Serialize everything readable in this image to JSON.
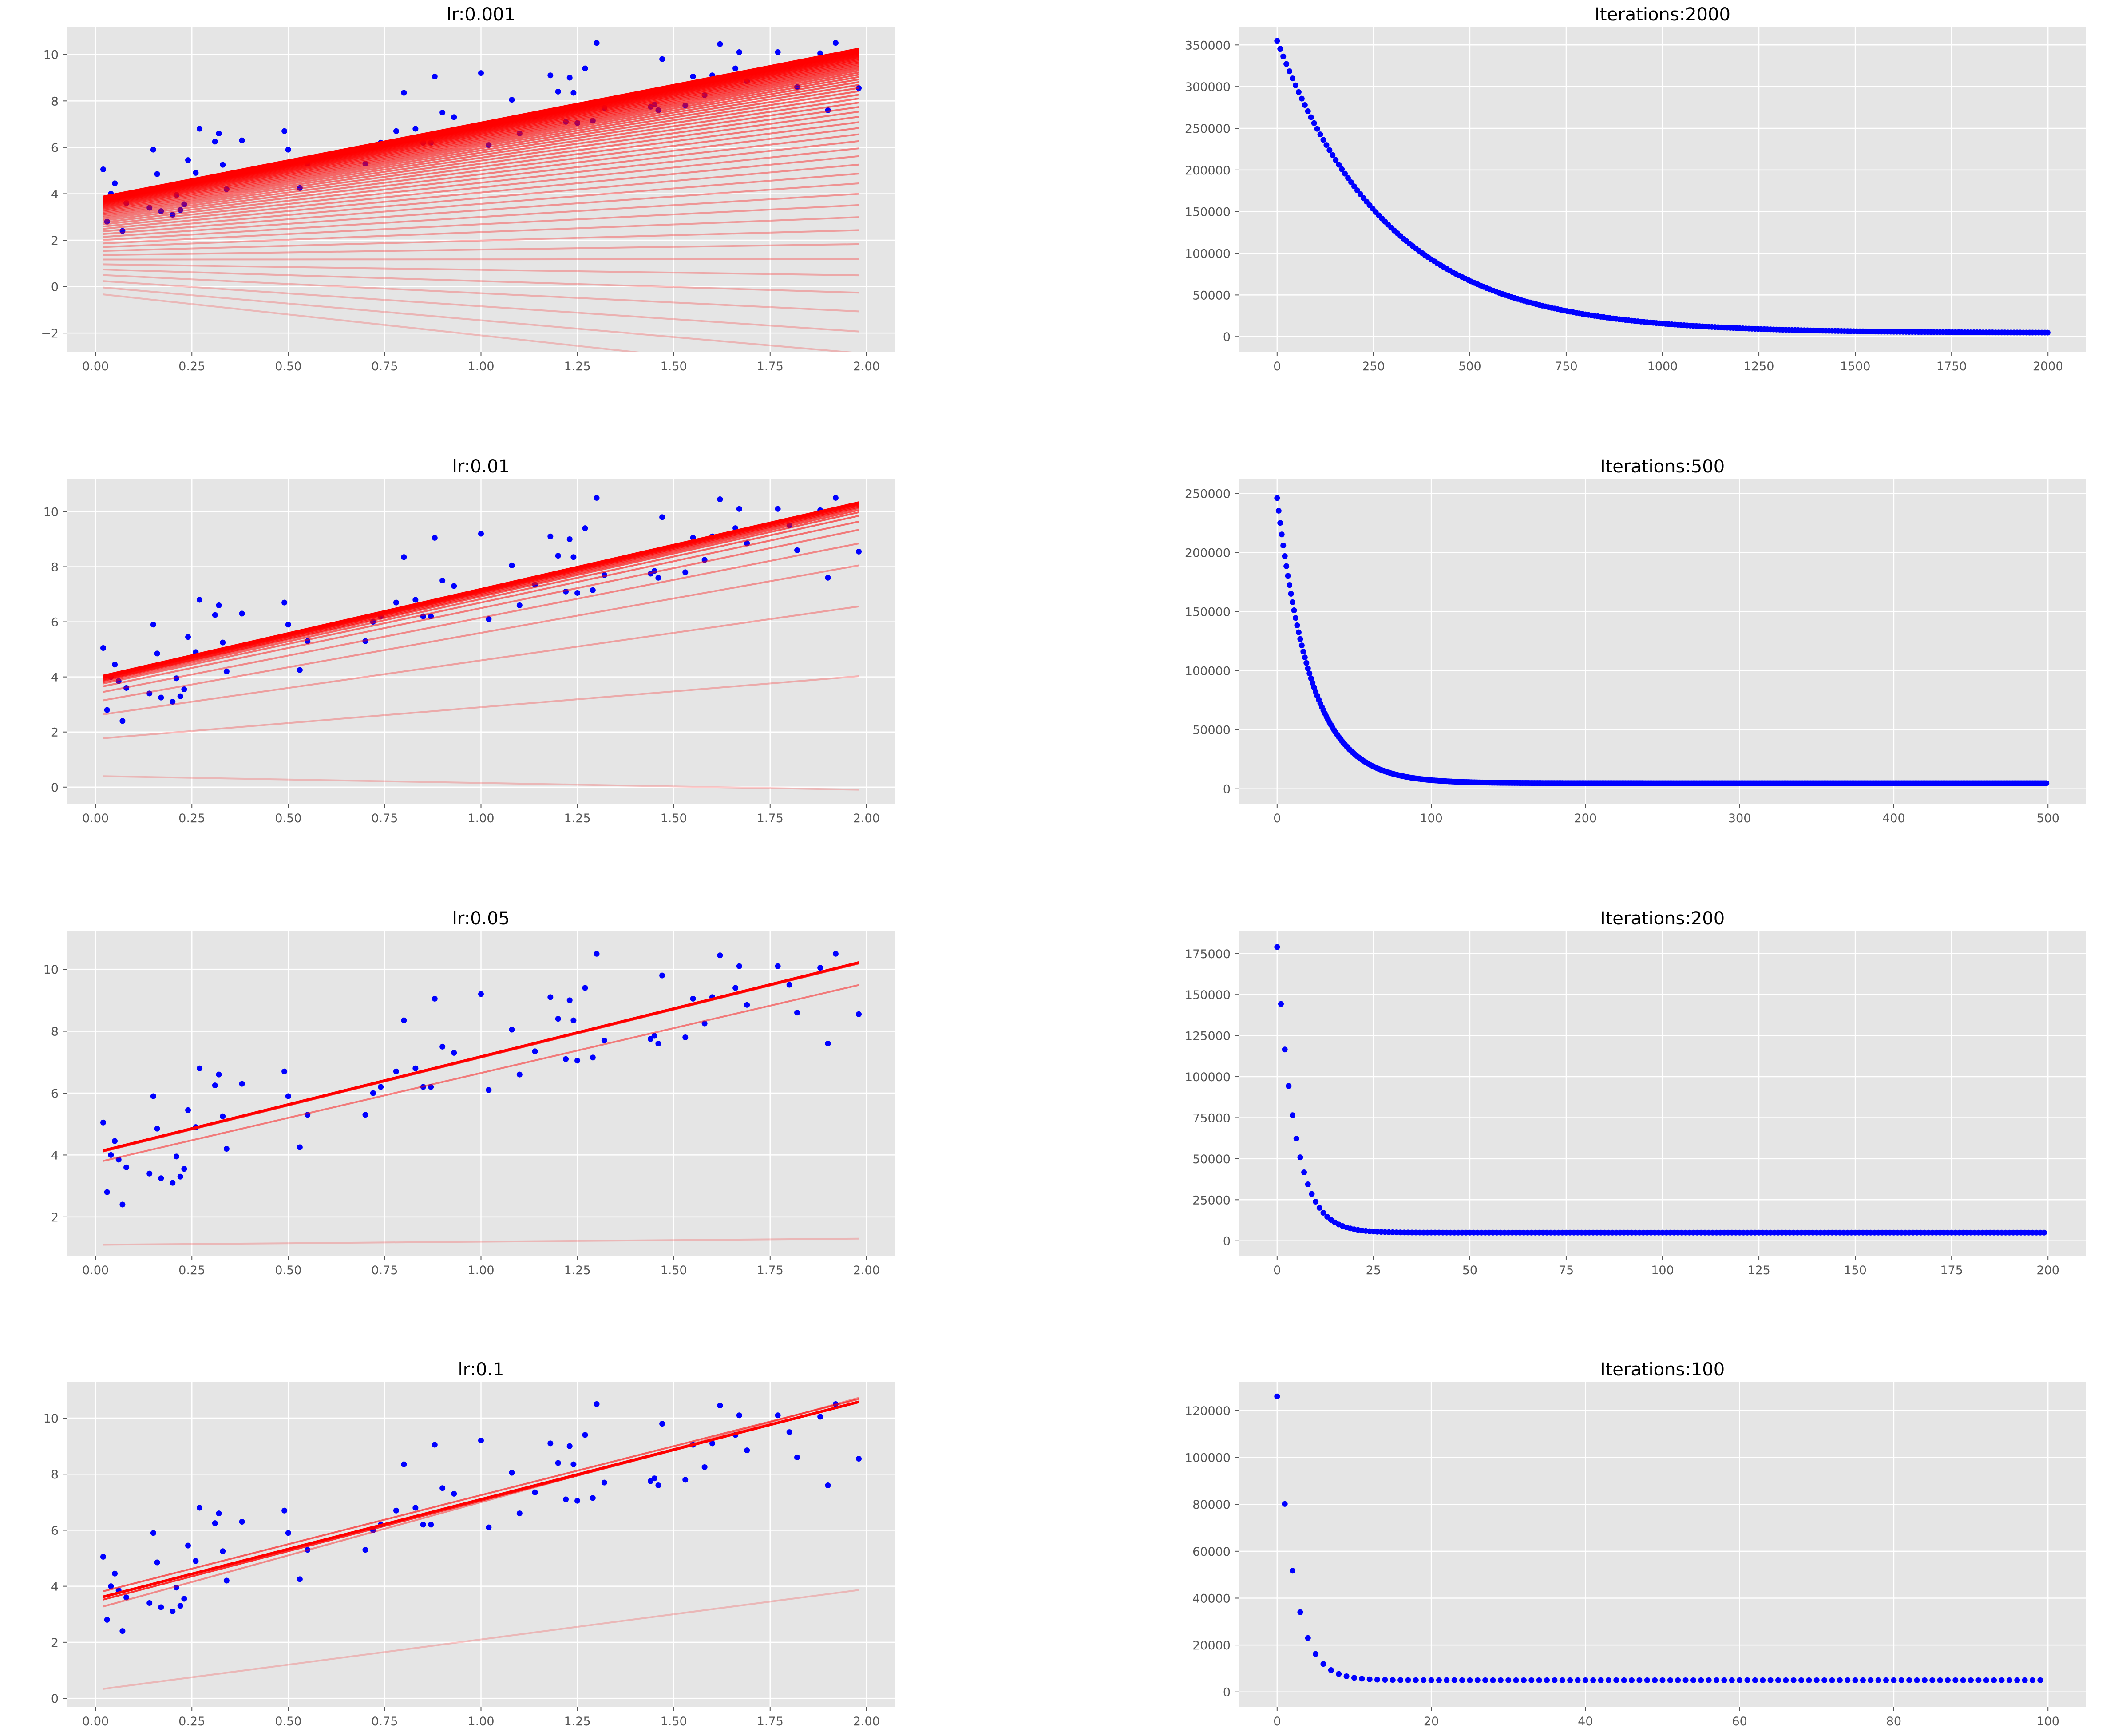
{
  "figure": {
    "background": "#ffffff",
    "panel_background": "#e5e5e5",
    "grid_color": "#ffffff",
    "style": "ggplot"
  },
  "scatter_data": {
    "x": [
      0.02,
      0.03,
      0.04,
      0.05,
      0.06,
      0.07,
      0.08,
      0.14,
      0.15,
      0.16,
      0.17,
      0.2,
      0.21,
      0.22,
      0.23,
      0.24,
      0.26,
      0.27,
      0.31,
      0.32,
      0.33,
      0.34,
      0.38,
      0.49,
      0.5,
      0.53,
      0.55,
      0.7,
      0.72,
      0.74,
      0.78,
      0.8,
      0.83,
      0.85,
      0.87,
      0.88,
      0.9,
      0.93,
      1.0,
      1.02,
      1.08,
      1.1,
      1.14,
      1.18,
      1.2,
      1.22,
      1.23,
      1.24,
      1.25,
      1.27,
      1.29,
      1.3,
      1.32,
      1.44,
      1.45,
      1.46,
      1.47,
      1.53,
      1.55,
      1.58,
      1.6,
      1.62,
      1.66,
      1.67,
      1.69,
      1.77,
      1.8,
      1.82,
      1.88,
      1.9,
      1.92,
      1.98
    ],
    "y": [
      5.05,
      2.8,
      4.0,
      4.45,
      3.85,
      2.4,
      3.6,
      3.4,
      5.9,
      4.85,
      3.25,
      3.1,
      3.95,
      3.3,
      3.55,
      5.45,
      4.9,
      6.8,
      6.25,
      6.6,
      5.25,
      4.2,
      6.3,
      6.7,
      5.9,
      4.25,
      5.3,
      5.3,
      6.0,
      6.2,
      6.7,
      8.35,
      6.8,
      6.2,
      6.2,
      9.05,
      7.5,
      7.3,
      9.2,
      6.1,
      8.05,
      6.6,
      7.35,
      9.1,
      8.4,
      7.1,
      9.0,
      8.35,
      7.05,
      9.4,
      7.15,
      10.5,
      7.7,
      7.75,
      7.85,
      7.6,
      9.8,
      7.8,
      9.05,
      8.25,
      9.1,
      10.45,
      9.4,
      10.1,
      8.85,
      10.1,
      9.5,
      8.6,
      10.05,
      7.6,
      10.5,
      8.55
    ]
  },
  "chart_data": [
    {
      "type": "scatter+line",
      "title": "lr:0.001",
      "xlim": [
        -0.075,
        2.075
      ],
      "ylim": [
        -2.8,
        11.2
      ],
      "xticks": [
        0.0,
        0.25,
        0.5,
        0.75,
        1.0,
        1.25,
        1.5,
        1.75,
        2.0
      ],
      "xtick_labels": [
        "0.00",
        "0.25",
        "0.50",
        "0.75",
        "1.00",
        "1.25",
        "1.50",
        "1.75",
        "2.00"
      ],
      "yticks": [
        -2,
        0,
        2,
        4,
        6,
        8,
        10
      ],
      "ytick_labels": [
        "−2",
        "0",
        "2",
        "4",
        "6",
        "8",
        "10"
      ],
      "scatter_color": "#0000ff",
      "line_color": "#ff0000",
      "fit_lines": {
        "count": 60,
        "first": {
          "b": -0.3,
          "w": -1.8
        },
        "last": {
          "b": 3.8,
          "w": 3.25
        },
        "x_range": [
          0.02,
          1.98
        ]
      }
    },
    {
      "type": "scatter",
      "title": "Iterations:2000",
      "xlim": [
        -100,
        2100
      ],
      "ylim": [
        -18000,
        372000
      ],
      "xticks": [
        0,
        250,
        500,
        750,
        1000,
        1250,
        1500,
        1750,
        2000
      ],
      "xtick_labels": [
        "0",
        "250",
        "500",
        "750",
        "1000",
        "1250",
        "1500",
        "1750",
        "2000"
      ],
      "yticks": [
        0,
        50000,
        100000,
        150000,
        200000,
        250000,
        300000,
        350000
      ],
      "ytick_labels": [
        "0",
        "50000",
        "100000",
        "150000",
        "200000",
        "250000",
        "300000",
        "350000"
      ],
      "color": "#0000ff",
      "loss": {
        "n": 2000,
        "start": 355000,
        "floor": 4500,
        "tau": 290,
        "sample_step": 8
      }
    },
    {
      "type": "scatter+line",
      "title": "lr:0.01",
      "xlim": [
        -0.075,
        2.075
      ],
      "ylim": [
        -0.6,
        11.2
      ],
      "xticks": [
        0.0,
        0.25,
        0.5,
        0.75,
        1.0,
        1.25,
        1.5,
        1.75,
        2.0
      ],
      "xtick_labels": [
        "0.00",
        "0.25",
        "0.50",
        "0.75",
        "1.00",
        "1.25",
        "1.50",
        "1.75",
        "2.00"
      ],
      "yticks": [
        0,
        2,
        4,
        6,
        8,
        10
      ],
      "ytick_labels": [
        "0",
        "2",
        "4",
        "6",
        "8",
        "10"
      ],
      "scatter_color": "#0000ff",
      "line_color": "#ff0000",
      "fit_lines": [
        {
          "b": 0.4,
          "w": -0.25
        },
        {
          "b": 1.75,
          "w": 1.15
        },
        {
          "b": 2.6,
          "w": 2.0
        },
        {
          "b": 3.1,
          "w": 2.5
        },
        {
          "b": 3.4,
          "w": 2.75
        },
        {
          "b": 3.6,
          "w": 2.9
        },
        {
          "b": 3.7,
          "w": 3.0
        },
        {
          "b": 3.75,
          "w": 3.08
        },
        {
          "b": 3.8,
          "w": 3.12
        },
        {
          "b": 3.82,
          "w": 3.15
        },
        {
          "b": 3.85,
          "w": 3.17
        },
        {
          "b": 3.88,
          "w": 3.18
        },
        {
          "b": 3.9,
          "w": 3.19
        },
        {
          "b": 3.92,
          "w": 3.2
        },
        {
          "b": 3.95,
          "w": 3.2
        },
        {
          "b": 3.97,
          "w": 3.21
        }
      ]
    },
    {
      "type": "scatter",
      "title": "Iterations:500",
      "xlim": [
        -25,
        525
      ],
      "ylim": [
        -12500,
        262500
      ],
      "xticks": [
        0,
        100,
        200,
        300,
        400,
        500
      ],
      "xtick_labels": [
        "0",
        "100",
        "200",
        "300",
        "400",
        "500"
      ],
      "yticks": [
        0,
        50000,
        100000,
        150000,
        200000,
        250000
      ],
      "ytick_labels": [
        "0",
        "50000",
        "100000",
        "150000",
        "200000",
        "250000"
      ],
      "color": "#0000ff",
      "loss": {
        "n": 500,
        "start": 246000,
        "floor": 4800,
        "tau": 22,
        "sample_step": 1
      }
    },
    {
      "type": "scatter+line",
      "title": "lr:0.05",
      "xlim": [
        -0.075,
        2.075
      ],
      "ylim": [
        0.75,
        11.25
      ],
      "xticks": [
        0.0,
        0.25,
        0.5,
        0.75,
        1.0,
        1.25,
        1.5,
        1.75,
        2.0
      ],
      "xtick_labels": [
        "0.00",
        "0.25",
        "0.50",
        "0.75",
        "1.00",
        "1.25",
        "1.50",
        "1.75",
        "2.00"
      ],
      "yticks": [
        2,
        4,
        6,
        8,
        10
      ],
      "ytick_labels": [
        "2",
        "4",
        "6",
        "8",
        "10"
      ],
      "scatter_color": "#0000ff",
      "line_color": "#ff0000",
      "fit_lines": [
        {
          "b": 1.1,
          "w": 0.1
        },
        {
          "b": 3.75,
          "w": 2.9
        },
        {
          "b": 4.05,
          "w": 3.1
        },
        {
          "b": 4.08,
          "w": 3.1
        }
      ]
    },
    {
      "type": "scatter",
      "title": "Iterations:200",
      "xlim": [
        -10,
        210
      ],
      "ylim": [
        -9000,
        189000
      ],
      "xticks": [
        0,
        25,
        50,
        75,
        100,
        125,
        150,
        175,
        200
      ],
      "xtick_labels": [
        "0",
        "25",
        "50",
        "75",
        "100",
        "125",
        "150",
        "175",
        "200"
      ],
      "yticks": [
        0,
        25000,
        50000,
        75000,
        100000,
        125000,
        150000,
        175000
      ],
      "ytick_labels": [
        "0",
        "25000",
        "50000",
        "75000",
        "100000",
        "125000",
        "150000",
        "175000"
      ],
      "color": "#0000ff",
      "loss": {
        "n": 200,
        "start": 179000,
        "floor": 5000,
        "tau": 4.5,
        "sample_step": 1
      }
    },
    {
      "type": "scatter+line",
      "title": "lr:0.1",
      "xlim": [
        -0.075,
        2.075
      ],
      "ylim": [
        -0.3,
        11.3
      ],
      "xticks": [
        0.0,
        0.25,
        0.5,
        0.75,
        1.0,
        1.25,
        1.5,
        1.75,
        2.0
      ],
      "xtick_labels": [
        "0.00",
        "0.25",
        "0.50",
        "0.75",
        "1.00",
        "1.25",
        "1.50",
        "1.75",
        "2.00"
      ],
      "yticks": [
        0,
        2,
        4,
        6,
        8,
        10
      ],
      "ytick_labels": [
        "0",
        "2",
        "4",
        "6",
        "8",
        "10"
      ],
      "scatter_color": "#0000ff",
      "line_color": "#ff0000",
      "fit_lines": [
        {
          "b": 0.3,
          "w": 1.8
        },
        {
          "b": 3.2,
          "w": 3.8
        },
        {
          "b": 3.75,
          "w": 3.5
        },
        {
          "b": 3.45,
          "w": 3.6
        },
        {
          "b": 3.55,
          "w": 3.55
        }
      ]
    },
    {
      "type": "scatter",
      "title": "Iterations:100",
      "xlim": [
        -5,
        105
      ],
      "ylim": [
        -6300,
        132300
      ],
      "xticks": [
        0,
        20,
        40,
        60,
        80,
        100
      ],
      "xtick_labels": [
        "0",
        "20",
        "40",
        "60",
        "80",
        "100"
      ],
      "yticks": [
        0,
        20000,
        40000,
        60000,
        80000,
        100000,
        120000
      ],
      "ytick_labels": [
        "0",
        "20000",
        "40000",
        "60000",
        "80000",
        "100000",
        "120000"
      ],
      "color": "#0000ff",
      "loss": {
        "n": 100,
        "start": 126000,
        "floor": 5000,
        "tau": 2.1,
        "sample_step": 1
      }
    }
  ]
}
